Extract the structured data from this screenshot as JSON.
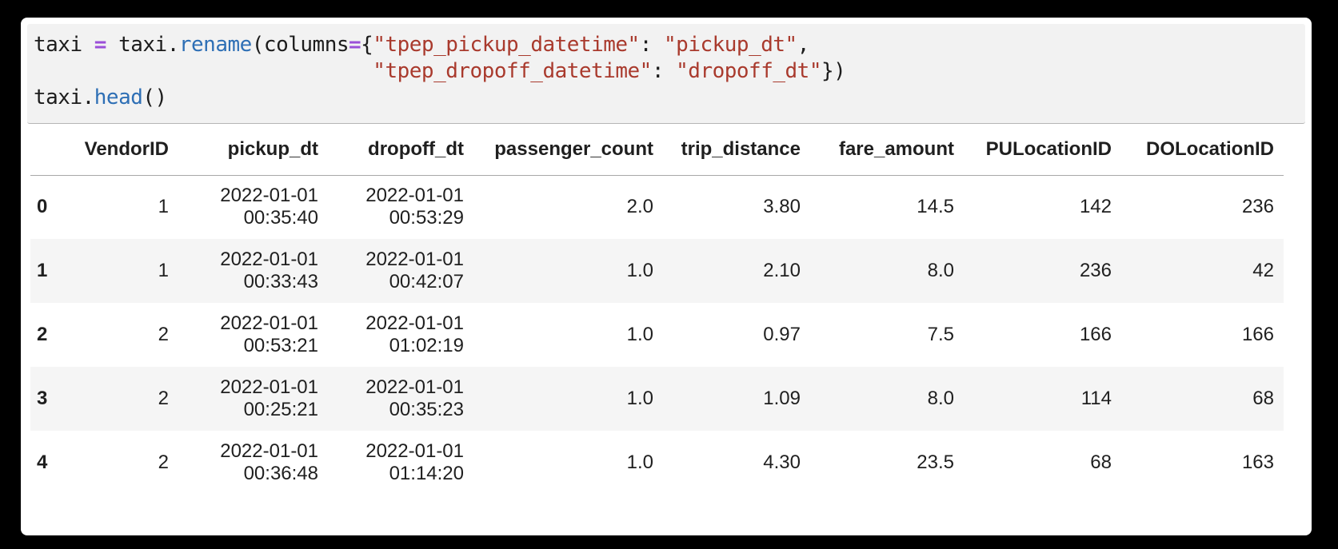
{
  "panel": {
    "background": "#ffffff",
    "outer_background": "#000000"
  },
  "code_cell": {
    "background": "#f2f2f2",
    "token_colors": {
      "plain": "#1c1c1c",
      "operator": "#9b4fd8",
      "function": "#2e6fb5",
      "string": "#a93a2d"
    },
    "lines": [
      [
        {
          "text": "taxi ",
          "type": "plain"
        },
        {
          "text": "=",
          "type": "operator"
        },
        {
          "text": " taxi.",
          "type": "plain"
        },
        {
          "text": "rename",
          "type": "function"
        },
        {
          "text": "(columns",
          "type": "plain"
        },
        {
          "text": "=",
          "type": "operator"
        },
        {
          "text": "{",
          "type": "plain"
        },
        {
          "text": "\"tpep_pickup_datetime\"",
          "type": "string"
        },
        {
          "text": ": ",
          "type": "plain"
        },
        {
          "text": "\"pickup_dt\"",
          "type": "string"
        },
        {
          "text": ",",
          "type": "plain"
        }
      ],
      [
        {
          "text": "                            ",
          "type": "plain"
        },
        {
          "text": "\"tpep_dropoff_datetime\"",
          "type": "string"
        },
        {
          "text": ": ",
          "type": "plain"
        },
        {
          "text": "\"dropoff_dt\"",
          "type": "string"
        },
        {
          "text": "})",
          "type": "plain"
        }
      ],
      [
        {
          "text": "taxi.",
          "type": "plain"
        },
        {
          "text": "head",
          "type": "function"
        },
        {
          "text": "()",
          "type": "plain"
        }
      ]
    ]
  },
  "table": {
    "stripe_color": "#f5f5f5",
    "index_header": "",
    "columns": [
      "VendorID",
      "pickup_dt",
      "dropoff_dt",
      "passenger_count",
      "trip_distance",
      "fare_amount",
      "PULocationID",
      "DOLocationID"
    ],
    "rows": [
      {
        "index": "0",
        "cells": [
          "1",
          "2022-01-01\n00:35:40",
          "2022-01-01\n00:53:29",
          "2.0",
          "3.80",
          "14.5",
          "142",
          "236"
        ]
      },
      {
        "index": "1",
        "cells": [
          "1",
          "2022-01-01\n00:33:43",
          "2022-01-01\n00:42:07",
          "1.0",
          "2.10",
          "8.0",
          "236",
          "42"
        ]
      },
      {
        "index": "2",
        "cells": [
          "2",
          "2022-01-01\n00:53:21",
          "2022-01-01\n01:02:19",
          "1.0",
          "0.97",
          "7.5",
          "166",
          "166"
        ]
      },
      {
        "index": "3",
        "cells": [
          "2",
          "2022-01-01\n00:25:21",
          "2022-01-01\n00:35:23",
          "1.0",
          "1.09",
          "8.0",
          "114",
          "68"
        ]
      },
      {
        "index": "4",
        "cells": [
          "2",
          "2022-01-01\n00:36:48",
          "2022-01-01\n01:14:20",
          "1.0",
          "4.30",
          "23.5",
          "68",
          "163"
        ]
      }
    ]
  }
}
